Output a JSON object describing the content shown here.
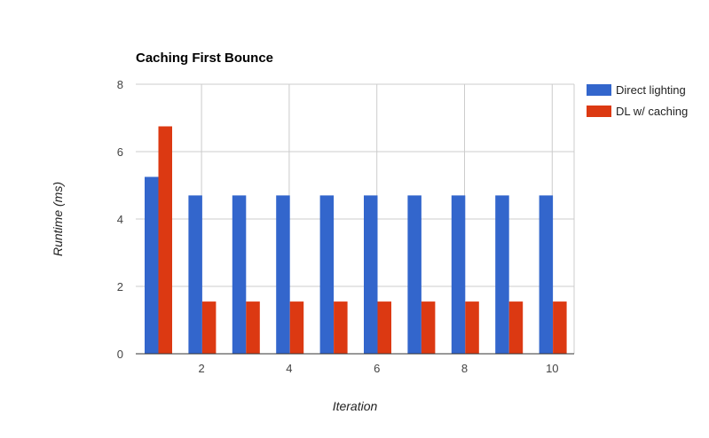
{
  "chart_data": {
    "type": "bar",
    "title": "Caching First Bounce",
    "xlabel": "Iteration",
    "ylabel": "Runtime (ms)",
    "categories": [
      "1",
      "2",
      "3",
      "4",
      "5",
      "6",
      "7",
      "8",
      "9",
      "10"
    ],
    "x_tick_labels": [
      "",
      "2",
      "",
      "4",
      "",
      "6",
      "",
      "8",
      "",
      "10"
    ],
    "y_ticks": [
      "0",
      "2",
      "4",
      "6",
      "8"
    ],
    "ylim": [
      0,
      8
    ],
    "grid": true,
    "legend_position": "right",
    "series": [
      {
        "name": "Direct lighting",
        "color": "#3366cc",
        "values": [
          5.25,
          4.7,
          4.7,
          4.7,
          4.7,
          4.7,
          4.7,
          4.7,
          4.7,
          4.7
        ]
      },
      {
        "name": "DL w/ caching",
        "color": "#dc3912",
        "values": [
          6.75,
          1.55,
          1.55,
          1.55,
          1.55,
          1.55,
          1.55,
          1.55,
          1.55,
          1.55
        ]
      }
    ]
  }
}
